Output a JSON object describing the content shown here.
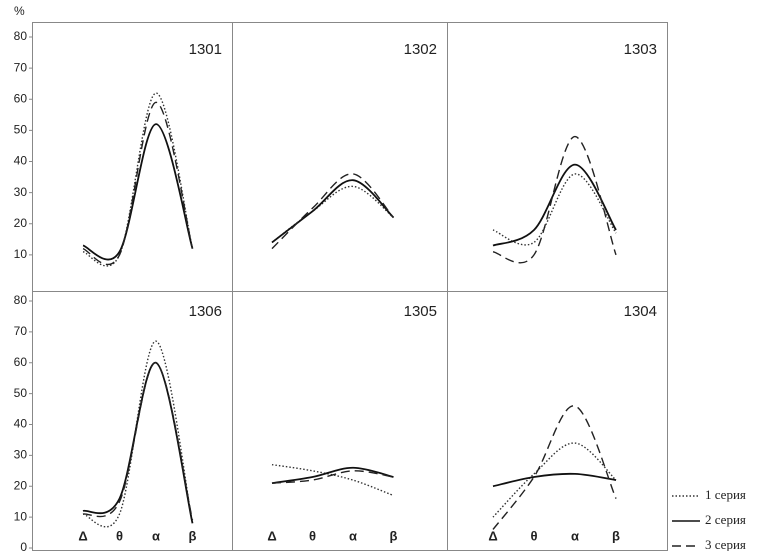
{
  "chart_data": [
    {
      "type": "line",
      "title": "1301",
      "ylabel": "%",
      "categories": [
        null,
        null,
        null,
        null
      ],
      "ylim": [
        0,
        80
      ],
      "yticks": [
        10,
        20,
        30,
        40,
        50,
        60,
        70,
        80
      ],
      "series": [
        {
          "name": "1 серия",
          "color": "#333333",
          "dash": "dotted",
          "values": [
            11,
            10,
            62,
            12
          ]
        },
        {
          "name": "2 серия",
          "color": "#111111",
          "dash": "solid",
          "values": [
            13,
            11,
            52,
            12
          ]
        },
        {
          "name": "3 серия",
          "color": "#222222",
          "dash": "dashed",
          "values": [
            12,
            10,
            59,
            12
          ]
        }
      ]
    },
    {
      "type": "line",
      "title": "1302",
      "categories": [
        null,
        null,
        null,
        null
      ],
      "ylim": [
        0,
        80
      ],
      "series": [
        {
          "color": "#333333",
          "dash": "dotted",
          "values": [
            14,
            24,
            32,
            22
          ]
        },
        {
          "color": "#111111",
          "dash": "solid",
          "values": [
            14,
            24,
            34,
            22
          ]
        },
        {
          "color": "#222222",
          "dash": "dashed",
          "values": [
            12,
            25,
            36,
            22
          ]
        }
      ]
    },
    {
      "type": "line",
      "title": "1303",
      "categories": [
        null,
        null,
        null,
        null
      ],
      "ylim": [
        0,
        80
      ],
      "series": [
        {
          "color": "#333333",
          "dash": "dotted",
          "values": [
            18,
            14,
            36,
            17
          ]
        },
        {
          "color": "#111111",
          "dash": "solid",
          "values": [
            13,
            18,
            39,
            18
          ]
        },
        {
          "color": "#222222",
          "dash": "dashed",
          "values": [
            11,
            10,
            48,
            10
          ]
        }
      ]
    },
    {
      "type": "line",
      "title": "1306",
      "categories": [
        "Δ",
        "θ",
        "α",
        "β"
      ],
      "ylim": [
        0,
        80
      ],
      "yticks": [
        0,
        10,
        20,
        30,
        40,
        50,
        60,
        70,
        80
      ],
      "series": [
        {
          "color": "#333333",
          "dash": "dotted",
          "values": [
            11,
            11,
            67,
            8
          ]
        },
        {
          "color": "#111111",
          "dash": "solid",
          "values": [
            12,
            16,
            60,
            8
          ]
        },
        {
          "color": "#222222",
          "dash": "dashed",
          "values": [
            11,
            15,
            60,
            9
          ]
        }
      ]
    },
    {
      "type": "line",
      "title": "1305",
      "categories": [
        "Δ",
        "θ",
        "α",
        "β"
      ],
      "ylim": [
        0,
        80
      ],
      "series": [
        {
          "color": "#333333",
          "dash": "dotted",
          "values": [
            27,
            25,
            22,
            17
          ]
        },
        {
          "color": "#111111",
          "dash": "solid",
          "values": [
            21,
            23,
            26,
            23
          ]
        },
        {
          "color": "#222222",
          "dash": "dashed",
          "values": [
            21,
            22,
            25,
            23
          ]
        }
      ]
    },
    {
      "type": "line",
      "title": "1304",
      "categories": [
        "Δ",
        "θ",
        "α",
        "β"
      ],
      "ylim": [
        0,
        80
      ],
      "series": [
        {
          "color": "#333333",
          "dash": "dotted",
          "values": [
            10,
            24,
            34,
            22
          ]
        },
        {
          "color": "#111111",
          "dash": "solid",
          "values": [
            20,
            23,
            24,
            22
          ]
        },
        {
          "color": "#222222",
          "dash": "dashed",
          "values": [
            6,
            23,
            46,
            16
          ]
        }
      ]
    }
  ]
}
